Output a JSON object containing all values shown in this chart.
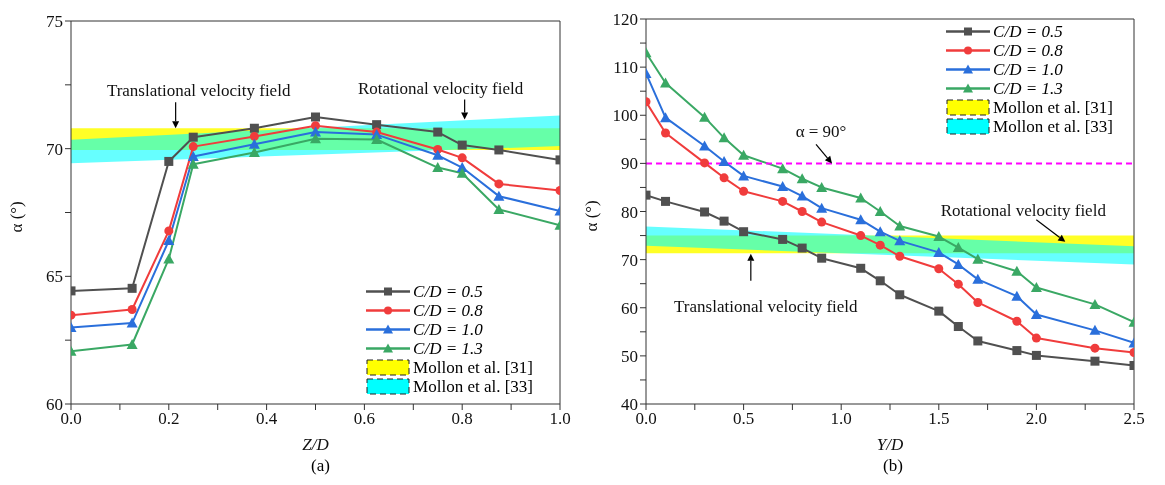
{
  "chart_data": [
    {
      "type": "line",
      "title": "(a)",
      "xlabel": "Z/D",
      "ylabel": "α (°)",
      "xlim": [
        0,
        1
      ],
      "ylim": [
        60,
        75
      ],
      "xticks": [
        {
          "value": 0,
          "label": "0.0"
        },
        {
          "value": 0.1,
          "label": null
        },
        {
          "value": 0.2,
          "label": "0.2"
        },
        {
          "value": 0.3,
          "label": null
        },
        {
          "value": 0.4,
          "label": "0.4"
        },
        {
          "value": 0.5,
          "label": null
        },
        {
          "value": 0.6,
          "label": "0.6"
        },
        {
          "value": 0.7,
          "label": null
        },
        {
          "value": 0.8,
          "label": "0.8"
        },
        {
          "value": 0.9,
          "label": null
        },
        {
          "value": 1,
          "label": "1.0"
        }
      ],
      "yticks": [
        60,
        {
          "value": 62.5,
          "label": null
        },
        65,
        {
          "value": 67.5,
          "label": null
        },
        70,
        {
          "value": 72.5,
          "label": null
        },
        75
      ],
      "x": [
        0,
        0.125,
        0.2,
        0.25,
        0.375,
        0.5,
        0.625,
        0.75,
        0.8,
        0.875,
        1
      ],
      "series": [
        {
          "name": "Mollon et al. [31]",
          "type": "area",
          "color": "#ffff00",
          "x": [
            0,
            1
          ],
          "lower": [
            69.95,
            69.95
          ],
          "upper": [
            70.8,
            70.8
          ],
          "line_style": "dashed",
          "values": [
            null,
            null
          ]
        },
        {
          "name": "Mollon et al. [33]",
          "type": "area",
          "color": "#00ffff",
          "x": [
            0,
            1
          ],
          "lower": [
            69.43,
            70.1
          ],
          "upper": [
            70.35,
            71.3
          ],
          "line_style": "dashed",
          "values": [
            null,
            null
          ]
        },
        {
          "name": "C/D = 0.5",
          "color": "#505050",
          "marker": "square",
          "values": [
            64.43,
            64.53,
            69.5,
            70.45,
            70.8,
            71.24,
            70.94,
            70.65,
            70.14,
            69.95,
            69.56
          ]
        },
        {
          "name": "C/D = 0.8",
          "color": "#f03c3c",
          "marker": "circle",
          "values": [
            63.48,
            63.7,
            66.78,
            70.08,
            70.48,
            70.9,
            70.65,
            69.97,
            69.64,
            68.62,
            68.36
          ]
        },
        {
          "name": "C/D = 1.0",
          "color": "#2a6fdb",
          "marker": "triangle",
          "values": [
            63.0,
            63.17,
            66.4,
            69.69,
            70.17,
            70.65,
            70.55,
            69.74,
            69.26,
            68.14,
            67.56
          ]
        },
        {
          "name": "C/D = 1.3",
          "color": "#3aa864",
          "marker": "triangle",
          "values": [
            62.07,
            62.33,
            65.68,
            69.39,
            69.85,
            70.39,
            70.36,
            69.26,
            69.04,
            67.62,
            67.0
          ]
        }
      ],
      "annotations": [
        {
          "text": "Translational velocity field",
          "x": 0.214,
          "y": 70.8
        },
        {
          "text": "Rotational velocity field",
          "x": 0.805,
          "y": 71.14
        }
      ],
      "legend": "bottom right",
      "grid": false,
      "line_style": "solid"
    },
    {
      "type": "line",
      "title": "(b)",
      "xlabel": "Y/D",
      "ylabel": "α (°)",
      "xlim": [
        0,
        2.5
      ],
      "ylim": [
        40,
        120
      ],
      "xticks": [
        {
          "value": 0,
          "label": "0.0"
        },
        {
          "value": 0.25,
          "label": null
        },
        {
          "value": 0.5,
          "label": "0.5"
        },
        {
          "value": 0.75,
          "label": null
        },
        {
          "value": 1,
          "label": "1.0"
        },
        {
          "value": 1.25,
          "label": null
        },
        {
          "value": 1.5,
          "label": "1.5"
        },
        {
          "value": 1.75,
          "label": null
        },
        {
          "value": 2,
          "label": "2.0"
        },
        {
          "value": 2.25,
          "label": null
        },
        {
          "value": 2.5,
          "label": "2.5"
        }
      ],
      "yticks": [
        40,
        {
          "value": 45,
          "label": null
        },
        50,
        {
          "value": 55,
          "label": null
        },
        60,
        {
          "value": 65,
          "label": null
        },
        70,
        {
          "value": 75,
          "label": null
        },
        80,
        {
          "value": 85,
          "label": null
        },
        90,
        {
          "value": 95,
          "label": null
        },
        100,
        {
          "value": 105,
          "label": null
        },
        110,
        {
          "value": 115,
          "label": null
        },
        120
      ],
      "x": [
        0,
        0.1,
        0.3,
        0.4,
        0.5,
        0.7,
        0.8,
        0.9,
        1.1,
        1.2,
        1.3,
        1.5,
        1.6,
        1.7,
        1.9,
        2.0,
        2.3,
        2.5
      ],
      "series": [
        {
          "name": "Mollon et al. [31]",
          "type": "area",
          "color": "#ffff00",
          "x": [
            0,
            2.5
          ],
          "lower": [
            71.3,
            71.3
          ],
          "upper": [
            75.0,
            75.0
          ],
          "line_style": "dashed",
          "values": [
            null,
            null
          ]
        },
        {
          "name": "Mollon et al. [33]",
          "type": "area",
          "color": "#00ffff",
          "x": [
            0,
            2.5
          ],
          "lower": [
            72.9,
            69.0
          ],
          "upper": [
            76.9,
            72.8
          ],
          "line_style": "dashed",
          "values": [
            null,
            null
          ]
        },
        {
          "name": "C/D = 0.5",
          "color": "#505050",
          "marker": "square",
          "values": [
            83.4,
            82.1,
            79.9,
            78.0,
            75.8,
            74.2,
            72.4,
            70.3,
            68.2,
            65.6,
            62.7,
            59.3,
            56.1,
            53.1,
            51.1,
            50.1,
            48.9,
            48.0
          ]
        },
        {
          "name": "C/D = 0.8",
          "color": "#f03c3c",
          "marker": "circle",
          "values": [
            102.8,
            96.3,
            90.1,
            87.0,
            84.2,
            82.1,
            80.0,
            77.8,
            75.0,
            73.0,
            70.7,
            68.1,
            64.9,
            61.1,
            57.2,
            53.7,
            51.6,
            50.7
          ]
        },
        {
          "name": "C/D = 1.0",
          "color": "#2a6fdb",
          "marker": "triangle",
          "values": [
            108.7,
            99.5,
            93.6,
            90.4,
            87.4,
            85.2,
            83.2,
            80.7,
            78.3,
            75.8,
            73.9,
            71.5,
            69.0,
            65.9,
            62.4,
            58.6,
            55.3,
            52.7
          ]
        },
        {
          "name": "C/D = 1.3",
          "color": "#3aa864",
          "marker": "triangle",
          "values": [
            113.0,
            106.7,
            99.6,
            95.3,
            91.7,
            88.9,
            86.8,
            85.0,
            82.8,
            80.0,
            77.0,
            74.8,
            72.5,
            70.1,
            67.6,
            64.2,
            60.7,
            57.0
          ]
        }
      ],
      "ref_lines": [
        {
          "axis": "y",
          "value": 90,
          "color": "#ff00ff",
          "line_style": "dashed"
        }
      ],
      "annotations": [
        {
          "text": "α = 90°",
          "x": 0.953,
          "y": 90
        },
        {
          "text": "Rotational velocity field",
          "x": 2.148,
          "y": 73.7
        },
        {
          "text": "Translational velocity field",
          "x": 0.537,
          "y": 71.2
        }
      ],
      "legend": "top right",
      "grid": false,
      "line_style": "solid"
    }
  ]
}
